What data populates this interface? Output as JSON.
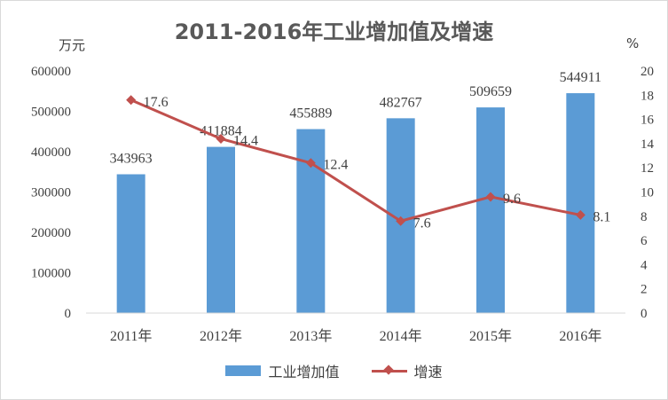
{
  "chart_data": {
    "type": "bar",
    "title": "2011-2016年工业增加值及增速",
    "y_unit_left": "万元",
    "y_unit_right": "%",
    "categories": [
      "2011年",
      "2012年",
      "2013年",
      "2014年",
      "2015年",
      "2016年"
    ],
    "ylim_left": [
      0,
      600000
    ],
    "yticks_left": [
      "0",
      "100000",
      "200000",
      "300000",
      "400000",
      "500000",
      "600000"
    ],
    "ylim_right": [
      0,
      20
    ],
    "yticks_right": [
      "0",
      "2",
      "4",
      "6",
      "8",
      "10",
      "12",
      "14",
      "16",
      "18",
      "20"
    ],
    "grid": false,
    "legend_position": "bottom",
    "series": [
      {
        "name": "工业增加值",
        "type": "bar",
        "axis": "left",
        "color": "#5b9bd5",
        "values": [
          343963,
          411884,
          455889,
          482767,
          509659,
          544911
        ],
        "labels": [
          "343963",
          "411884",
          "455889",
          "482767",
          "509659",
          "544911"
        ]
      },
      {
        "name": "增速",
        "type": "line",
        "axis": "right",
        "color": "#c0504d",
        "marker": "diamond",
        "values": [
          17.6,
          14.4,
          12.4,
          7.6,
          9.6,
          8.1
        ],
        "labels": [
          "17.6",
          "14.4",
          "12.4",
          "7.6",
          "9.6",
          "8.1"
        ]
      }
    ]
  }
}
